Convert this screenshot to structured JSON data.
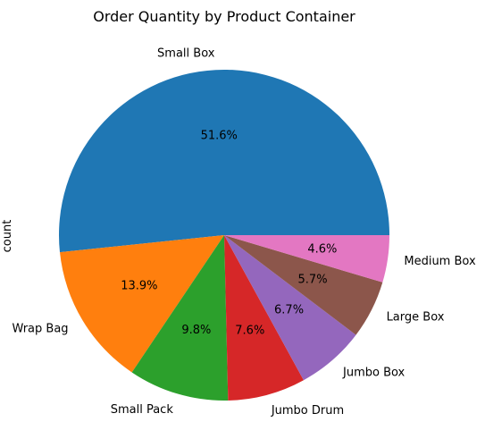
{
  "chart_data": {
    "type": "pie",
    "title": "Order Quantity by Product Container",
    "ylabel": "count",
    "start_angle_deg": 0,
    "direction": "counterclockwise",
    "slices": [
      {
        "label": "Small Box",
        "value": 51.6,
        "pct_label": "51.6%",
        "color": "#1f77b4"
      },
      {
        "label": "Wrap Bag",
        "value": 13.9,
        "pct_label": "13.9%",
        "color": "#ff7f0e"
      },
      {
        "label": "Small Pack",
        "value": 9.8,
        "pct_label": "9.8%",
        "color": "#2ca02c"
      },
      {
        "label": "Jumbo Drum",
        "value": 7.6,
        "pct_label": "7.6%",
        "color": "#d62728"
      },
      {
        "label": "Jumbo Box",
        "value": 6.7,
        "pct_label": "6.7%",
        "color": "#9467bd"
      },
      {
        "label": "Large Box",
        "value": 5.7,
        "pct_label": "5.7%",
        "color": "#8c564b"
      },
      {
        "label": "Medium Box",
        "value": 4.6,
        "pct_label": "4.6%",
        "color": "#e377c2"
      }
    ]
  }
}
